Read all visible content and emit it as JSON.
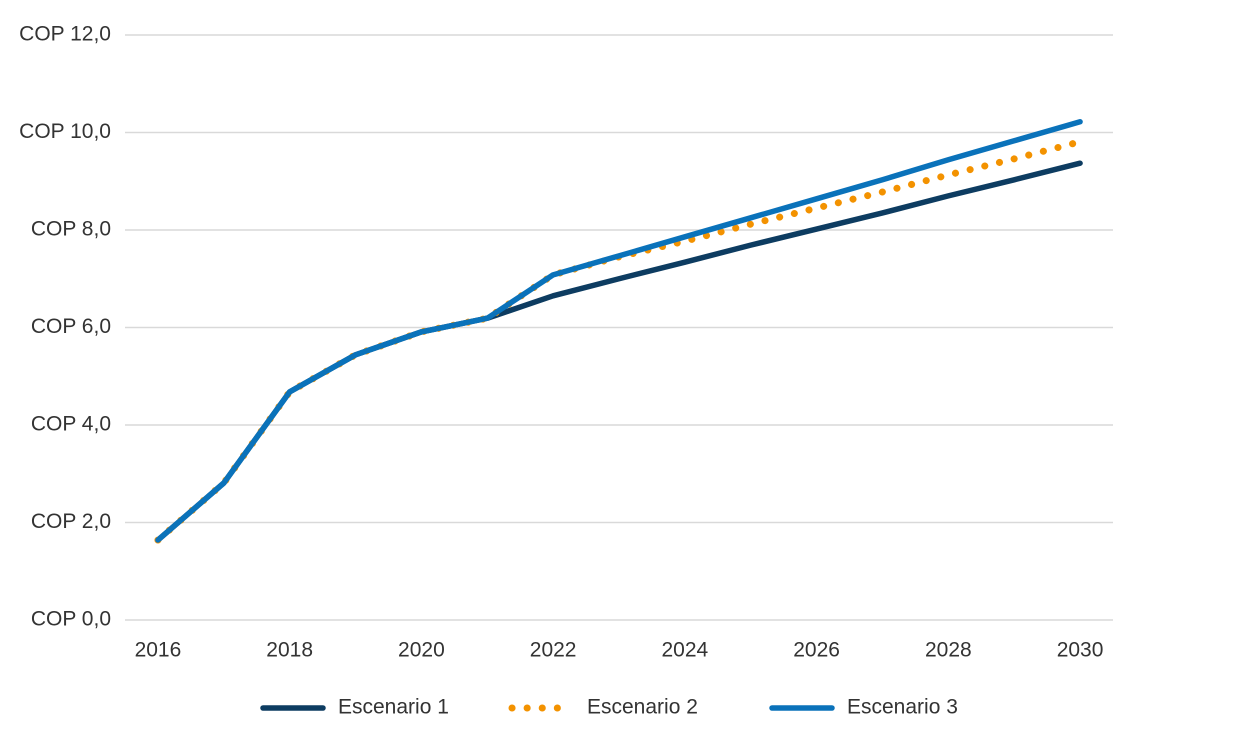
{
  "chart_data": {
    "type": "line",
    "x": [
      2016,
      2017,
      2018,
      2019,
      2020,
      2021,
      2022,
      2023,
      2024,
      2025,
      2026,
      2027,
      2028,
      2029,
      2030
    ],
    "series": [
      {
        "name": "Escenario 1",
        "color": "#0d3c61",
        "style": "solid",
        "values": [
          1.64,
          2.81,
          4.68,
          5.44,
          5.91,
          6.19,
          6.65,
          7.0,
          7.34,
          7.69,
          8.02,
          8.35,
          8.7,
          9.03,
          9.37
        ]
      },
      {
        "name": "Escenario 2",
        "color": "#f39200",
        "style": "dotted",
        "values": [
          1.64,
          2.81,
          4.68,
          5.44,
          5.91,
          6.19,
          7.08,
          7.45,
          7.77,
          8.12,
          8.45,
          8.78,
          9.13,
          9.46,
          9.81
        ]
      },
      {
        "name": "Escenario 3",
        "color": "#0a72ba",
        "style": "solid",
        "values": [
          1.64,
          2.81,
          4.68,
          5.44,
          5.91,
          6.19,
          7.08,
          7.47,
          7.86,
          8.25,
          8.64,
          9.03,
          9.44,
          9.83,
          10.22
        ]
      }
    ],
    "xlim": [
      2015.5,
      2030.5
    ],
    "xticks": [
      2016,
      2018,
      2020,
      2022,
      2024,
      2026,
      2028,
      2030
    ],
    "ylim": [
      0,
      12
    ],
    "yticks": [
      {
        "value": 0,
        "label": "COP 0,0"
      },
      {
        "value": 2,
        "label": "COP 2,0"
      },
      {
        "value": 4,
        "label": "COP 4,0"
      },
      {
        "value": 6,
        "label": "COP 6,0"
      },
      {
        "value": 8,
        "label": "COP 8,0"
      },
      {
        "value": 10,
        "label": "COP 10,0"
      },
      {
        "value": 12,
        "label": "COP 12,0"
      }
    ],
    "grid": true,
    "legend": "bottom"
  }
}
